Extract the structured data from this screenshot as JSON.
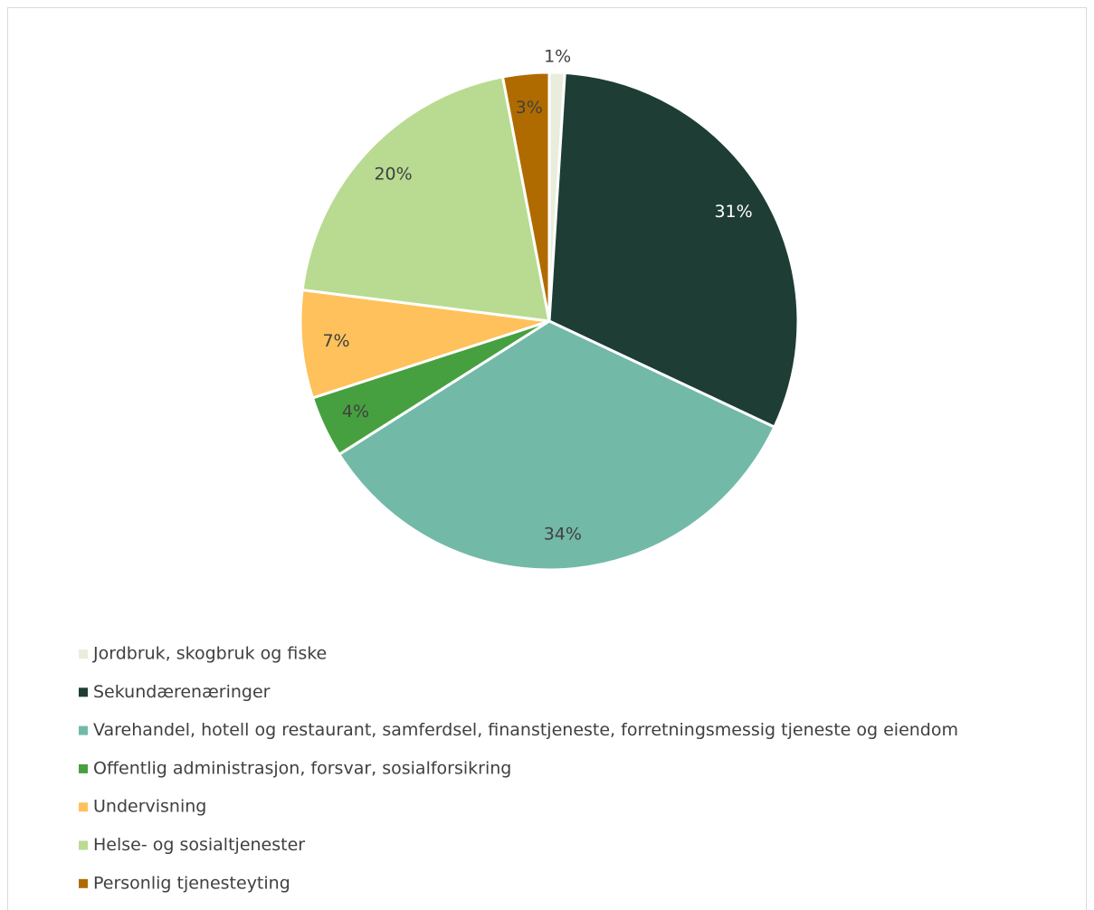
{
  "chart_data": {
    "type": "pie",
    "categories": [
      "Jordbruk, skogbruk og fiske",
      "Sekundærenæringer",
      "Varehandel, hotell og restaurant, samferdsel, finanstjeneste, forretningsmessig tjeneste og eiendom",
      "Offentlig administrasjon, forsvar, sosialforsikring",
      "Undervisning",
      "Helse- og sosialtjenester",
      "Personlig tjenesteyting"
    ],
    "values": [
      1,
      31,
      34,
      4,
      7,
      20,
      3
    ],
    "value_labels": [
      "1%",
      "31%",
      "34%",
      "4%",
      "7%",
      "20%",
      "3%"
    ],
    "colors": [
      "#e9eddc",
      "#1e3d34",
      "#72b9a8",
      "#47a040",
      "#fec15b",
      "#b8db91",
      "#b06b00"
    ],
    "legend": "bottom"
  }
}
